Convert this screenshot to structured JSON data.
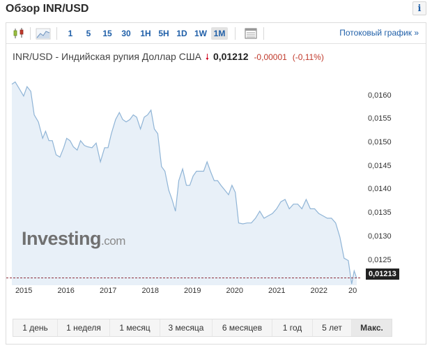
{
  "header": {
    "title": "Обзор INR/USD",
    "info_label": "i"
  },
  "toolbar": {
    "intervals": [
      {
        "label": "1",
        "active": false
      },
      {
        "label": "5",
        "active": false
      },
      {
        "label": "15",
        "active": false
      },
      {
        "label": "30",
        "active": false
      },
      {
        "label": "1H",
        "active": false
      },
      {
        "label": "5H",
        "active": false
      },
      {
        "label": "1D",
        "active": false
      },
      {
        "label": "1W",
        "active": false
      },
      {
        "label": "1M",
        "active": true
      }
    ],
    "stream_link": "Потоковый график »",
    "icons": [
      "candlestick-icon",
      "area-chart-icon",
      "table-icon"
    ]
  },
  "quote": {
    "name": "INR/USD - Индийская рупия Доллар США",
    "arrow": "🠗",
    "price": "0,01212",
    "change": "-0,00001",
    "change_pct": "(-0,11%)"
  },
  "watermark": {
    "brand": "Investing",
    "suffix": ".com"
  },
  "chart_data": {
    "type": "area",
    "ylim": [
      0.0119,
      0.0165
    ],
    "yticks": [
      "0,0160",
      "0,0155",
      "0,0150",
      "0,0145",
      "0,0140",
      "0,0135",
      "0,0130",
      "0,0125"
    ],
    "ytick_values": [
      0.016,
      0.0155,
      0.015,
      0.0145,
      0.014,
      0.0135,
      0.013,
      0.0125
    ],
    "xticks": [
      "2015",
      "2016",
      "2017",
      "2018",
      "2019",
      "2020",
      "2021",
      "2022",
      "20"
    ],
    "xtick_values": [
      2015.0,
      2016.0,
      2017.0,
      2018.0,
      2019.0,
      2020.0,
      2021.0,
      2022.0,
      2022.9
    ],
    "last_value": 0.01213,
    "last_label": "0,01213",
    "line_color": "#8fb4d6",
    "fill_color": "#e8f0f8",
    "series": [
      {
        "x": [
          2014.72,
          2014.8,
          2014.9,
          2015.0,
          2015.08,
          2015.17,
          2015.25,
          2015.35,
          2015.45,
          2015.52,
          2015.6,
          2015.68,
          2015.77,
          2015.86,
          2015.95,
          2016.02,
          2016.1,
          2016.18,
          2016.27,
          2016.35,
          2016.44,
          2016.52,
          2016.62,
          2016.72,
          2016.82,
          2016.92,
          2017.0,
          2017.08,
          2017.18,
          2017.27,
          2017.35,
          2017.43,
          2017.52,
          2017.6,
          2017.68,
          2017.77,
          2017.86,
          2017.94,
          2018.02,
          2018.1,
          2018.18,
          2018.27,
          2018.35,
          2018.44,
          2018.52,
          2018.6,
          2018.68,
          2018.77,
          2018.86,
          2018.94,
          2019.02,
          2019.1,
          2019.18,
          2019.27,
          2019.35,
          2019.43,
          2019.52,
          2019.6,
          2019.68,
          2019.77,
          2019.86,
          2019.94,
          2020.02,
          2020.1,
          2020.2,
          2020.3,
          2020.4,
          2020.5,
          2020.6,
          2020.7,
          2020.8,
          2020.9,
          2021.0,
          2021.1,
          2021.2,
          2021.3,
          2021.4,
          2021.5,
          2021.6,
          2021.7,
          2021.8,
          2021.9,
          2022.0,
          2022.1,
          2022.2,
          2022.3,
          2022.4,
          2022.5,
          2022.6,
          2022.7,
          2022.78,
          2022.84,
          2022.9
        ],
        "y": [
          0.01625,
          0.0163,
          0.01615,
          0.016,
          0.0162,
          0.0161,
          0.0156,
          0.01545,
          0.0151,
          0.01525,
          0.01505,
          0.01505,
          0.01475,
          0.0147,
          0.0149,
          0.0151,
          0.01505,
          0.01492,
          0.01485,
          0.01505,
          0.01495,
          0.01492,
          0.0149,
          0.015,
          0.0146,
          0.0149,
          0.0149,
          0.0152,
          0.0155,
          0.01565,
          0.0155,
          0.01545,
          0.0155,
          0.0156,
          0.01555,
          0.0153,
          0.01555,
          0.0156,
          0.0157,
          0.0153,
          0.0152,
          0.0145,
          0.0144,
          0.014,
          0.0138,
          0.01355,
          0.0142,
          0.01445,
          0.0141,
          0.0141,
          0.0143,
          0.0144,
          0.0144,
          0.0144,
          0.0146,
          0.0144,
          0.0142,
          0.0142,
          0.0141,
          0.014,
          0.0139,
          0.0141,
          0.01395,
          0.0133,
          0.01328,
          0.0133,
          0.0133,
          0.0134,
          0.01355,
          0.0134,
          0.01345,
          0.0135,
          0.0136,
          0.01375,
          0.0138,
          0.0136,
          0.0137,
          0.0137,
          0.0136,
          0.0138,
          0.0136,
          0.0136,
          0.0135,
          0.01345,
          0.0134,
          0.0134,
          0.0133,
          0.013,
          0.01255,
          0.0125,
          0.012,
          0.01228,
          0.01212
        ]
      }
    ],
    "reference_line": {
      "value": 0.01213,
      "style": "dashed",
      "color": "#8b2e3c"
    }
  },
  "ranges": [
    {
      "label": "1 день",
      "active": false
    },
    {
      "label": "1 неделя",
      "active": false
    },
    {
      "label": "1 месяц",
      "active": false
    },
    {
      "label": "3 месяца",
      "active": false
    },
    {
      "label": "6 месяцев",
      "active": false
    },
    {
      "label": "1 год",
      "active": false
    },
    {
      "label": "5 лет",
      "active": false
    },
    {
      "label": "Макс.",
      "active": true
    }
  ]
}
